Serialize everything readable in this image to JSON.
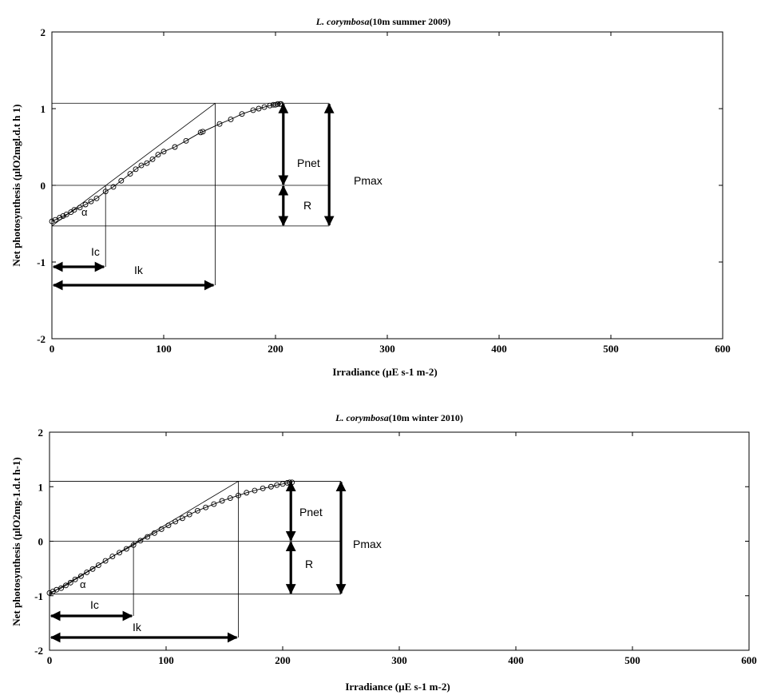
{
  "chart_data": [
    {
      "type": "scatter",
      "title_italic": "L. corymbosa",
      "title_rest": "(10m summer 2009)",
      "xlabel": "Irradiance (µE s-1 m-2)",
      "ylabel": "Net photosynthesis (µlO2mgl.d.t h 1)",
      "xlim": [
        0,
        600
      ],
      "ylim": [
        -2,
        2
      ],
      "xticks": [
        "0",
        "100",
        "200",
        "300",
        "400",
        "500",
        "600"
      ],
      "yticks": [
        "2",
        "1",
        "0",
        "-1",
        "-2"
      ],
      "xtick_values": [
        0,
        100,
        200,
        300,
        400,
        500,
        600
      ],
      "ytick_values": [
        2,
        1,
        0,
        -1,
        -2
      ],
      "grid": false,
      "params": {
        "R": -0.53,
        "Pmax": 1.07,
        "Ic": 48,
        "Ik": 146,
        "Imax": 206,
        "Pnet_x": 207,
        "Pmax_x": 248
      },
      "points": {
        "x": [
          0,
          3,
          7,
          10,
          13,
          17,
          20,
          25,
          30,
          35,
          40,
          48,
          55,
          62,
          70,
          75,
          80,
          85,
          90,
          95,
          100,
          110,
          120,
          133,
          135,
          150,
          160,
          170,
          180,
          185,
          190,
          195,
          198,
          200,
          202,
          204,
          205
        ],
        "y": [
          -0.47,
          -0.45,
          -0.42,
          -0.4,
          -0.38,
          -0.35,
          -0.32,
          -0.29,
          -0.25,
          -0.21,
          -0.17,
          -0.08,
          -0.02,
          0.06,
          0.15,
          0.21,
          0.26,
          0.29,
          0.34,
          0.4,
          0.44,
          0.5,
          0.58,
          0.69,
          0.7,
          0.8,
          0.86,
          0.93,
          0.98,
          1.0,
          1.02,
          1.04,
          1.05,
          1.05,
          1.06,
          1.06,
          1.06
        ]
      },
      "labels": {
        "alpha": "α",
        "Ic": "Ic",
        "Ik": "Ik",
        "Pnet": "Pnet",
        "Pmax": "Pmax",
        "R": "R"
      }
    },
    {
      "type": "scatter",
      "title_italic": "L. corymbosa",
      "title_rest": "(10m winter 2010)",
      "xlabel": "Irradiance (µE s-1 m-2)",
      "ylabel": "Net photosynthesis (µlO2mg-1.d.t h-1)",
      "xlim": [
        0,
        600
      ],
      "ylim": [
        -2,
        2
      ],
      "xticks": [
        "0",
        "100",
        "200",
        "300",
        "400",
        "500",
        "600"
      ],
      "yticks": [
        "2",
        "1",
        "0",
        "-1",
        "-2"
      ],
      "xtick_values": [
        0,
        100,
        200,
        300,
        400,
        500,
        600
      ],
      "ytick_values": [
        2,
        1,
        0,
        -1,
        -2
      ],
      "grid": false,
      "params": {
        "R": -0.97,
        "Pmax": 1.1,
        "Ic": 72,
        "Ik": 162,
        "Imax": 206,
        "Pnet_x": 207,
        "Pmax_x": 250
      },
      "points": {
        "x": [
          0,
          3,
          6,
          10,
          14,
          18,
          22,
          27,
          32,
          37,
          42,
          48,
          54,
          60,
          66,
          72,
          78,
          84,
          90,
          96,
          102,
          108,
          114,
          120,
          127,
          134,
          141,
          148,
          155,
          162,
          169,
          176,
          183,
          190,
          195,
          200,
          204,
          206,
          208
        ],
        "y": [
          -0.95,
          -0.92,
          -0.89,
          -0.86,
          -0.81,
          -0.76,
          -0.7,
          -0.64,
          -0.57,
          -0.51,
          -0.44,
          -0.36,
          -0.28,
          -0.21,
          -0.14,
          -0.07,
          0.01,
          0.08,
          0.15,
          0.22,
          0.29,
          0.36,
          0.42,
          0.49,
          0.56,
          0.62,
          0.68,
          0.74,
          0.79,
          0.84,
          0.89,
          0.93,
          0.97,
          1.0,
          1.03,
          1.05,
          1.07,
          1.08,
          1.08
        ]
      },
      "labels": {
        "alpha": "α",
        "Ic": "Ic",
        "Ik": "Ik",
        "Pnet": "Pnet",
        "Pmax": "Pmax",
        "R": "R"
      }
    }
  ]
}
